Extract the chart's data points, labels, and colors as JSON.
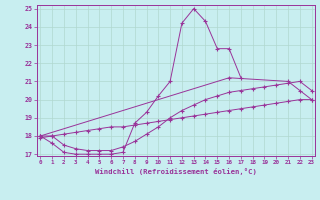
{
  "xlabel": "Windchill (Refroidissement éolien,°C)",
  "bg_color": "#c8eef0",
  "line_color": "#993399",
  "grid_color": "#b0d8d0",
  "xmin": 0,
  "xmax": 23,
  "ymin": 17,
  "ymax": 25,
  "series": [
    {
      "x": [
        0,
        1,
        2,
        3,
        4,
        5,
        6,
        7,
        8,
        9,
        10,
        11,
        12,
        13,
        14,
        15,
        16,
        17
      ],
      "y": [
        18.0,
        17.6,
        17.1,
        17.0,
        17.0,
        17.0,
        17.0,
        17.1,
        18.7,
        19.3,
        20.2,
        21.0,
        24.2,
        25.0,
        24.3,
        22.8,
        22.8,
        21.2
      ]
    },
    {
      "x": [
        0,
        16,
        21,
        22,
        23
      ],
      "y": [
        18.0,
        21.2,
        21.0,
        20.5,
        20.0
      ]
    },
    {
      "x": [
        0,
        1,
        2,
        3,
        4,
        5,
        6,
        7,
        8,
        9,
        10,
        11,
        12,
        13,
        14,
        15,
        16,
        17,
        18,
        19,
        20,
        21,
        22,
        23
      ],
      "y": [
        18.0,
        18.0,
        17.5,
        17.3,
        17.2,
        17.2,
        17.2,
        17.4,
        17.7,
        18.1,
        18.5,
        19.0,
        19.4,
        19.7,
        20.0,
        20.2,
        20.4,
        20.5,
        20.6,
        20.7,
        20.8,
        20.9,
        21.0,
        20.5
      ]
    },
    {
      "x": [
        0,
        1,
        2,
        3,
        4,
        5,
        6,
        7,
        8,
        9,
        10,
        11,
        12,
        13,
        14,
        15,
        16,
        17,
        18,
        19,
        20,
        21,
        22,
        23
      ],
      "y": [
        17.9,
        18.0,
        18.1,
        18.2,
        18.3,
        18.4,
        18.5,
        18.5,
        18.6,
        18.7,
        18.8,
        18.9,
        19.0,
        19.1,
        19.2,
        19.3,
        19.4,
        19.5,
        19.6,
        19.7,
        19.8,
        19.9,
        20.0,
        20.0
      ]
    }
  ]
}
